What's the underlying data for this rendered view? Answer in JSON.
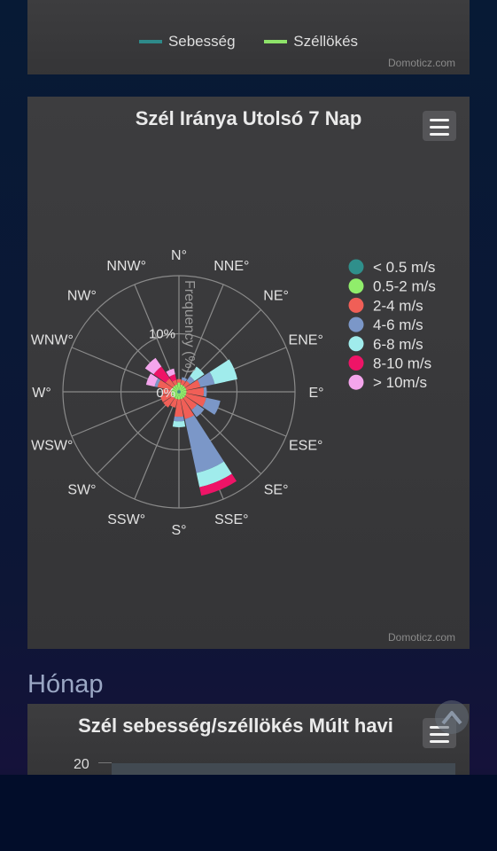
{
  "top_panel": {
    "legend": [
      {
        "label": "Sebesség",
        "color": "#2e8a8a"
      },
      {
        "label": "Széllökés",
        "color": "#8ee36a"
      }
    ],
    "credit": "Domoticz.com"
  },
  "rose_panel": {
    "title": "Szél Iránya Utolsó 7 Nap",
    "credit": "Domoticz.com",
    "menu_icon": "hamburger-menu-icon",
    "radial_axis_title": "Frequency (%)",
    "radial_tick_labels": [
      "0%",
      "10%"
    ]
  },
  "chart_data": {
    "type": "windrose",
    "title": "Szél Iránya Utolsó 7 Nap",
    "radial_axis_title": "Frequency (%)",
    "radial_ticks": [
      0,
      10,
      20
    ],
    "radial_tick_labels": [
      "0%",
      "10%"
    ],
    "grid": true,
    "legend_position": "right",
    "directions": [
      "N°",
      "NNE°",
      "NE°",
      "ENE°",
      "E°",
      "ESE°",
      "SE°",
      "SSE°",
      "S°",
      "SSW°",
      "SW°",
      "WSW°",
      "W°",
      "WNW°",
      "NW°",
      "NNW°"
    ],
    "series": [
      {
        "name": "< 0.5 m/s",
        "color": "#2f8f8b",
        "values": [
          0.4,
          0.3,
          0.3,
          0.3,
          0.3,
          0.3,
          0.3,
          0.3,
          0.3,
          0.3,
          0.3,
          0.3,
          0.3,
          0.3,
          0.3,
          0.3
        ]
      },
      {
        "name": "0.5-2 m/s",
        "color": "#90ed6b",
        "values": [
          1.2,
          1.0,
          1.0,
          1.0,
          1.0,
          1.0,
          1.0,
          1.0,
          1.0,
          1.0,
          1.0,
          1.0,
          1.0,
          1.0,
          1.0,
          1.0
        ]
      },
      {
        "name": "2-4 m/s",
        "color": "#f05f57",
        "values": [
          0.6,
          0.8,
          1.0,
          2.5,
          3.0,
          3.5,
          2.5,
          3.5,
          3.0,
          1.5,
          2.0,
          2.0,
          1.5,
          2.5,
          1.5,
          0.8
        ]
      },
      {
        "name": "4-6 m/s",
        "color": "#7b97c8",
        "values": [
          0,
          0.5,
          1.0,
          2.5,
          0.5,
          2.5,
          1.5,
          9.5,
          0.8,
          0,
          0,
          0,
          0,
          0.5,
          0,
          0
        ]
      },
      {
        "name": "6-8 m/s",
        "color": "#a0ecec",
        "values": [
          0,
          0,
          2.0,
          4.0,
          0,
          0,
          0,
          2.5,
          1.0,
          0,
          0,
          0,
          0,
          0,
          0,
          0
        ]
      },
      {
        "name": "8-10 m/s",
        "color": "#ee1467",
        "values": [
          0,
          0,
          0,
          0,
          0,
          0,
          0,
          1.5,
          0,
          0,
          0,
          0,
          0,
          0,
          2.5,
          1.0
        ]
      },
      {
        "name": "> 10m/s",
        "color": "#f4a5ec",
        "values": [
          0,
          0,
          0,
          0,
          0,
          0,
          0,
          0,
          0,
          0,
          0,
          0,
          0,
          1.5,
          1.8,
          1.0
        ]
      }
    ]
  },
  "section_heading": "Hónap",
  "month_panel": {
    "title": "Szél sebesség/széllökés Múlt havi",
    "y_tick_top": "20",
    "menu_icon": "hamburger-menu-icon"
  }
}
